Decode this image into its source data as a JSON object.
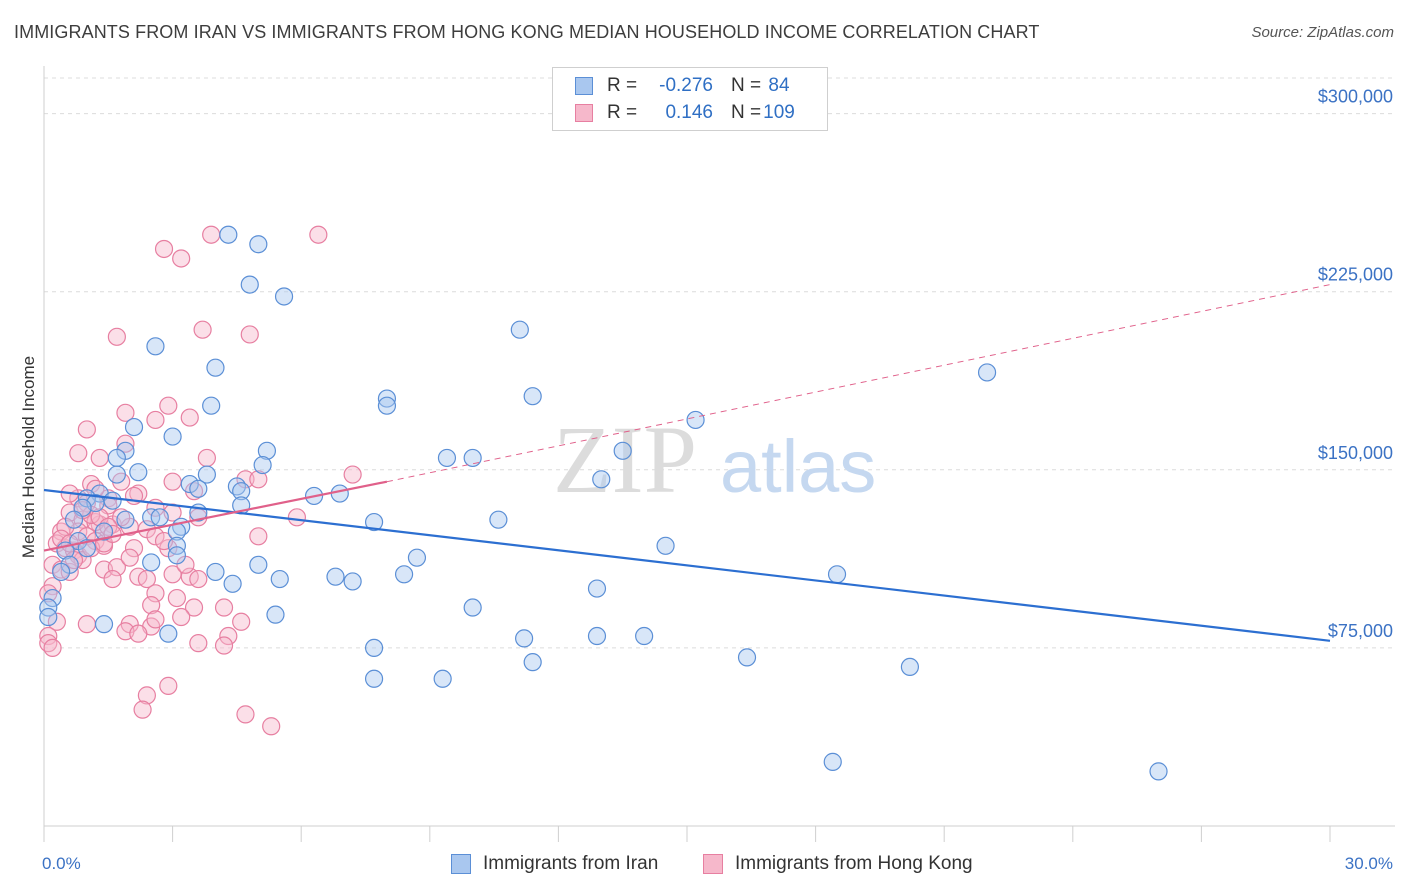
{
  "header": {
    "title": "IMMIGRANTS FROM IRAN VS IMMIGRANTS FROM HONG KONG MEDIAN HOUSEHOLD INCOME CORRELATION CHART",
    "source": "Source: ZipAtlas.com"
  },
  "watermark": {
    "zip": "ZIP",
    "atlas": "atlas"
  },
  "legend": {
    "iran": {
      "r_label": "R =",
      "r_value": "-0.276",
      "n_label": "N =",
      "n_value": "84"
    },
    "hongkong": {
      "r_label": "R =",
      "r_value": "0.146",
      "n_label": "N =",
      "n_value": "109"
    }
  },
  "colors": {
    "iran_fill": "#a9c7ef",
    "iran_stroke": "#5b8fd6",
    "iran_line": "#2c6fd1",
    "hongkong_fill": "#f6b8cb",
    "hongkong_stroke": "#e77fa1",
    "hongkong_line": "#e0608a",
    "tick_label": "#3b72c4",
    "grid": "#dcdcdc"
  },
  "chart_data": {
    "type": "scatter",
    "title": "IMMIGRANTS FROM IRAN VS IMMIGRANTS FROM HONG KONG MEDIAN HOUSEHOLD INCOME CORRELATION CHART",
    "xlabel": "",
    "ylabel": "Median Household Income",
    "xlim": [
      0,
      30
    ],
    "ylim": [
      0,
      315000
    ],
    "x_tick_labels": {
      "min": "0.0%",
      "max": "30.0%"
    },
    "y_ticks": [
      {
        "value": 75000,
        "label": "$75,000"
      },
      {
        "value": 150000,
        "label": "$150,000"
      },
      {
        "value": 225000,
        "label": "$225,000"
      },
      {
        "value": 300000,
        "label": "$300,000"
      }
    ],
    "grid": true,
    "legend_position": "top-center",
    "series": [
      {
        "name": "Immigrants from Iran",
        "color": "#5b8fd6",
        "points": [
          [
            4.3,
            249000
          ],
          [
            5.0,
            245000
          ],
          [
            4.8,
            228000
          ],
          [
            5.6,
            223000
          ],
          [
            2.6,
            202000
          ],
          [
            4.0,
            193000
          ],
          [
            3.9,
            177000
          ],
          [
            2.1,
            168000
          ],
          [
            3.0,
            164000
          ],
          [
            1.9,
            158000
          ],
          [
            5.2,
            158000
          ],
          [
            1.7,
            155000
          ],
          [
            5.1,
            152000
          ],
          [
            2.2,
            149000
          ],
          [
            1.7,
            148000
          ],
          [
            3.8,
            148000
          ],
          [
            3.4,
            144000
          ],
          [
            3.6,
            142000
          ],
          [
            4.5,
            143000
          ],
          [
            4.6,
            141000
          ],
          [
            1.3,
            140000
          ],
          [
            1.0,
            138000
          ],
          [
            1.6,
            137000
          ],
          [
            6.3,
            139000
          ],
          [
            6.9,
            140000
          ],
          [
            1.2,
            136000
          ],
          [
            4.6,
            135000
          ],
          [
            0.9,
            134000
          ],
          [
            2.5,
            130000
          ],
          [
            2.7,
            130000
          ],
          [
            3.6,
            132000
          ],
          [
            1.9,
            129000
          ],
          [
            0.7,
            129000
          ],
          [
            1.4,
            124000
          ],
          [
            3.2,
            126000
          ],
          [
            7.7,
            128000
          ],
          [
            10.6,
            129000
          ],
          [
            3.1,
            124000
          ],
          [
            0.8,
            120000
          ],
          [
            1.0,
            117000
          ],
          [
            0.5,
            116000
          ],
          [
            0.6,
            110000
          ],
          [
            0.4,
            107000
          ],
          [
            3.1,
            118000
          ],
          [
            3.1,
            114000
          ],
          [
            2.5,
            111000
          ],
          [
            5.0,
            110000
          ],
          [
            8.7,
            113000
          ],
          [
            4.0,
            107000
          ],
          [
            8.4,
            106000
          ],
          [
            5.5,
            104000
          ],
          [
            6.8,
            105000
          ],
          [
            7.2,
            103000
          ],
          [
            4.4,
            102000
          ],
          [
            0.2,
            96000
          ],
          [
            0.1,
            92000
          ],
          [
            0.1,
            88000
          ],
          [
            5.4,
            89000
          ],
          [
            1.4,
            85000
          ],
          [
            10.0,
            92000
          ],
          [
            12.9,
            100000
          ],
          [
            18.5,
            106000
          ],
          [
            14.5,
            118000
          ],
          [
            8.0,
            180000
          ],
          [
            8.0,
            177000
          ],
          [
            11.1,
            209000
          ],
          [
            11.4,
            181000
          ],
          [
            9.4,
            155000
          ],
          [
            10.0,
            155000
          ],
          [
            13.0,
            146000
          ],
          [
            13.5,
            158000
          ],
          [
            15.2,
            171000
          ],
          [
            22.0,
            191000
          ],
          [
            2.9,
            81000
          ],
          [
            7.7,
            75000
          ],
          [
            11.2,
            79000
          ],
          [
            11.4,
            69000
          ],
          [
            12.9,
            80000
          ],
          [
            14.0,
            80000
          ],
          [
            16.4,
            71000
          ],
          [
            20.2,
            67000
          ],
          [
            7.7,
            62000
          ],
          [
            9.3,
            62000
          ],
          [
            18.4,
            27000
          ],
          [
            26.0,
            23000
          ]
        ]
      },
      {
        "name": "Immigrants from Hong Kong",
        "color": "#e77fa1",
        "points": [
          [
            3.9,
            249000
          ],
          [
            6.4,
            249000
          ],
          [
            2.8,
            243000
          ],
          [
            3.2,
            239000
          ],
          [
            3.7,
            209000
          ],
          [
            4.8,
            207000
          ],
          [
            1.7,
            206000
          ],
          [
            2.9,
            177000
          ],
          [
            1.9,
            174000
          ],
          [
            2.6,
            171000
          ],
          [
            3.4,
            172000
          ],
          [
            1.0,
            167000
          ],
          [
            1.9,
            161000
          ],
          [
            0.8,
            157000
          ],
          [
            1.3,
            155000
          ],
          [
            3.8,
            155000
          ],
          [
            7.2,
            148000
          ],
          [
            4.7,
            146000
          ],
          [
            5.0,
            146000
          ],
          [
            3.0,
            145000
          ],
          [
            1.1,
            144000
          ],
          [
            1.8,
            145000
          ],
          [
            3.5,
            141000
          ],
          [
            2.2,
            140000
          ],
          [
            0.8,
            138000
          ],
          [
            1.0,
            136000
          ],
          [
            1.5,
            138000
          ],
          [
            2.6,
            134000
          ],
          [
            3.0,
            132000
          ],
          [
            3.6,
            130000
          ],
          [
            5.9,
            130000
          ],
          [
            0.6,
            132000
          ],
          [
            0.9,
            129000
          ],
          [
            1.3,
            127000
          ],
          [
            1.2,
            128000
          ],
          [
            1.6,
            127000
          ],
          [
            2.0,
            126000
          ],
          [
            2.4,
            125000
          ],
          [
            2.6,
            122000
          ],
          [
            0.4,
            124000
          ],
          [
            0.8,
            124000
          ],
          [
            1.0,
            122000
          ],
          [
            1.2,
            120000
          ],
          [
            1.4,
            118000
          ],
          [
            5.0,
            122000
          ],
          [
            0.3,
            119000
          ],
          [
            0.5,
            117000
          ],
          [
            0.7,
            116000
          ],
          [
            0.8,
            114000
          ],
          [
            0.9,
            112000
          ],
          [
            1.1,
            117000
          ],
          [
            1.4,
            119000
          ],
          [
            2.1,
            117000
          ],
          [
            2.9,
            117000
          ],
          [
            0.2,
            110000
          ],
          [
            0.4,
            108000
          ],
          [
            0.6,
            107000
          ],
          [
            1.4,
            108000
          ],
          [
            1.7,
            109000
          ],
          [
            2.2,
            105000
          ],
          [
            2.4,
            104000
          ],
          [
            3.0,
            106000
          ],
          [
            3.4,
            105000
          ],
          [
            3.6,
            104000
          ],
          [
            0.2,
            101000
          ],
          [
            0.1,
            98000
          ],
          [
            2.6,
            98000
          ],
          [
            3.1,
            96000
          ],
          [
            2.5,
            93000
          ],
          [
            3.5,
            92000
          ],
          [
            4.2,
            92000
          ],
          [
            0.3,
            86000
          ],
          [
            1.0,
            85000
          ],
          [
            2.0,
            85000
          ],
          [
            2.5,
            84000
          ],
          [
            2.6,
            87000
          ],
          [
            3.2,
            88000
          ],
          [
            4.6,
            86000
          ],
          [
            1.9,
            82000
          ],
          [
            2.2,
            81000
          ],
          [
            4.3,
            80000
          ],
          [
            3.6,
            77000
          ],
          [
            4.2,
            76000
          ],
          [
            0.1,
            80000
          ],
          [
            0.1,
            77000
          ],
          [
            0.2,
            75000
          ],
          [
            2.4,
            55000
          ],
          [
            2.9,
            59000
          ],
          [
            2.3,
            49000
          ],
          [
            4.7,
            47000
          ],
          [
            5.3,
            42000
          ],
          [
            0.6,
            140000
          ],
          [
            1.1,
            131000
          ],
          [
            1.5,
            135000
          ],
          [
            1.8,
            130000
          ],
          [
            2.1,
            139000
          ],
          [
            0.5,
            126000
          ],
          [
            0.9,
            133000
          ],
          [
            1.2,
            142000
          ],
          [
            1.3,
            130000
          ],
          [
            1.5,
            126000
          ],
          [
            1.6,
            123000
          ],
          [
            0.4,
            121000
          ],
          [
            0.6,
            119000
          ],
          [
            0.7,
            112000
          ],
          [
            2.0,
            113000
          ],
          [
            2.8,
            120000
          ],
          [
            3.3,
            110000
          ],
          [
            1.6,
            104000
          ]
        ]
      }
    ],
    "trend_lines": [
      {
        "series": "Immigrants from Iran",
        "x": [
          0,
          30
        ],
        "y": [
          141500,
          78000
        ],
        "style": "solid"
      },
      {
        "series": "Immigrants from Hong Kong",
        "x": [
          0,
          8
        ],
        "y": [
          116000,
          145000
        ],
        "style": "solid"
      },
      {
        "series": "Immigrants from Hong Kong",
        "x": [
          8,
          30
        ],
        "y": [
          145000,
          228000
        ],
        "style": "dashed"
      }
    ]
  },
  "bottom_legend": {
    "iran_label": "Immigrants from Iran",
    "hongkong_label": "Immigrants from Hong Kong"
  }
}
